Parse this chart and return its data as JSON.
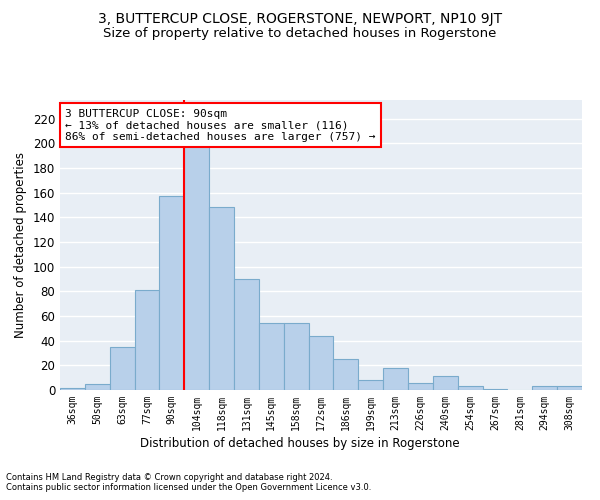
{
  "title": "3, BUTTERCUP CLOSE, ROGERSTONE, NEWPORT, NP10 9JT",
  "subtitle": "Size of property relative to detached houses in Rogerstone",
  "xlabel": "Distribution of detached houses by size in Rogerstone",
  "ylabel": "Number of detached properties",
  "footnote1": "Contains HM Land Registry data © Crown copyright and database right 2024.",
  "footnote2": "Contains public sector information licensed under the Open Government Licence v3.0.",
  "categories": [
    "36sqm",
    "50sqm",
    "63sqm",
    "77sqm",
    "90sqm",
    "104sqm",
    "118sqm",
    "131sqm",
    "145sqm",
    "158sqm",
    "172sqm",
    "186sqm",
    "199sqm",
    "213sqm",
    "226sqm",
    "240sqm",
    "254sqm",
    "267sqm",
    "281sqm",
    "294sqm",
    "308sqm"
  ],
  "values": [
    2,
    5,
    35,
    81,
    157,
    202,
    148,
    90,
    54,
    54,
    44,
    25,
    8,
    18,
    6,
    11,
    3,
    1,
    0,
    3,
    3
  ],
  "bar_color": "#b8d0ea",
  "bar_edgecolor": "#7aabcc",
  "annotation_text": "3 BUTTERCUP CLOSE: 90sqm\n← 13% of detached houses are smaller (116)\n86% of semi-detached houses are larger (757) →",
  "annotation_box_color": "white",
  "annotation_box_edgecolor": "red",
  "vline_color": "red",
  "ylim": [
    0,
    235
  ],
  "yticks": [
    0,
    20,
    40,
    60,
    80,
    100,
    120,
    140,
    160,
    180,
    200,
    220
  ],
  "background_color": "#e8eef5",
  "grid_color": "white",
  "title_fontsize": 10,
  "subtitle_fontsize": 9.5
}
